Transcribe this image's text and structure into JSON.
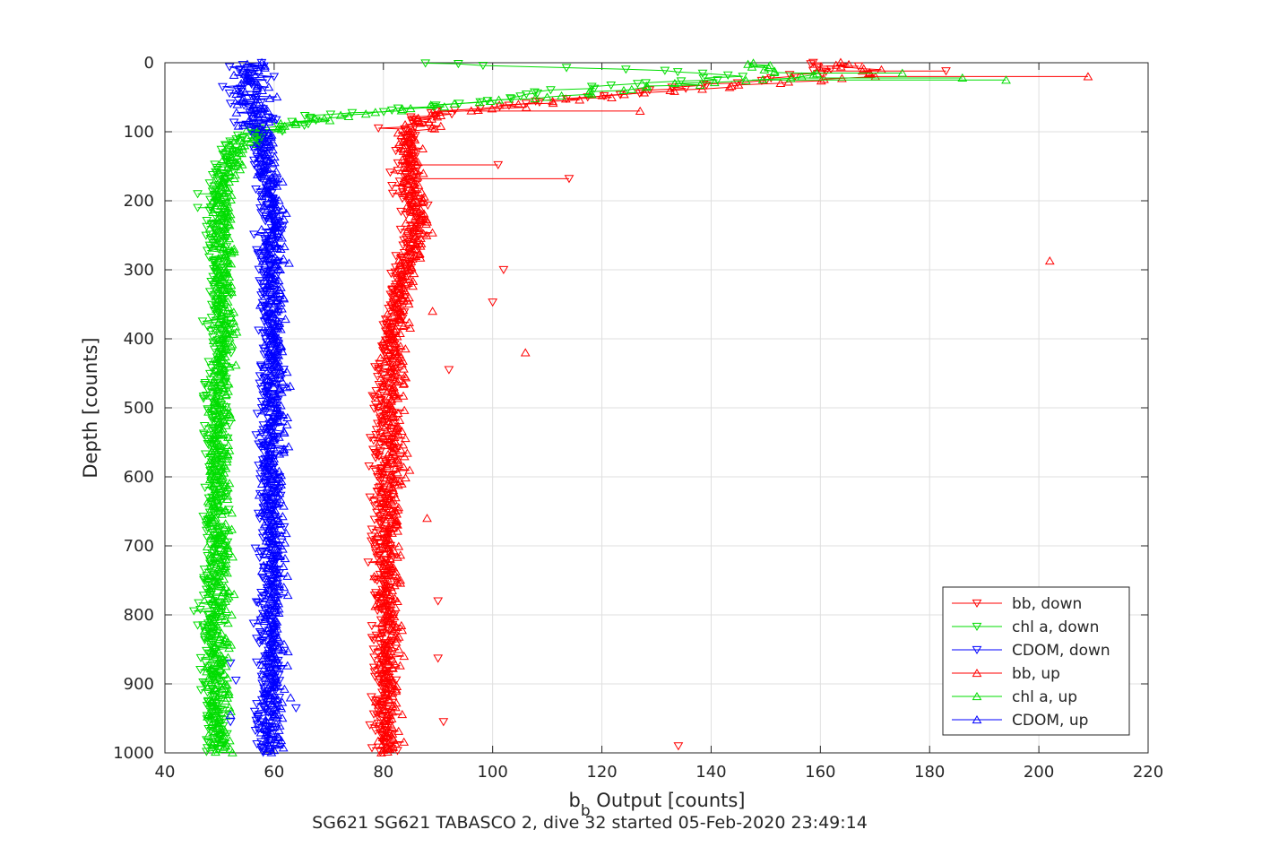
{
  "chart_data": {
    "type": "scatter",
    "xlabel": {
      "main": "b",
      "sub": "b",
      "rest": " Output [counts]"
    },
    "ylabel": "Depth [counts]",
    "caption": "SG621 SG621 TABASCO 2, dive 32 started 05-Feb-2020 23:49:14",
    "xlim": [
      40,
      220
    ],
    "ylim": [
      0,
      1000
    ],
    "y_reversed": true,
    "grid": true,
    "legend_position": "bottom-right",
    "x_ticks": [
      40,
      60,
      80,
      100,
      120,
      140,
      160,
      180,
      200,
      220
    ],
    "y_ticks": [
      0,
      100,
      200,
      300,
      400,
      500,
      600,
      700,
      800,
      900,
      1000
    ],
    "series": [
      {
        "name": "bb, down",
        "color": "#ff0000",
        "marker": "triangle-down",
        "profile": [
          [
            0,
            158
          ],
          [
            10,
            162
          ],
          [
            25,
            150
          ],
          [
            40,
            130
          ],
          [
            50,
            118
          ],
          [
            60,
            104
          ],
          [
            70,
            92
          ],
          [
            80,
            85
          ],
          [
            90,
            84
          ],
          [
            100,
            84
          ],
          [
            150,
            84
          ],
          [
            200,
            85
          ],
          [
            250,
            86
          ],
          [
            300,
            83
          ],
          [
            400,
            81
          ],
          [
            500,
            80
          ],
          [
            600,
            80
          ],
          [
            700,
            80
          ],
          [
            800,
            80
          ],
          [
            900,
            80
          ],
          [
            1000,
            80
          ]
        ],
        "outliers": [
          [
            148,
            101
          ],
          [
            168,
            114
          ],
          [
            300,
            102
          ],
          [
            347,
            100
          ],
          [
            445,
            92
          ],
          [
            863,
            90
          ],
          [
            780,
            90
          ],
          [
            955,
            91
          ],
          [
            990,
            134
          ],
          [
            12,
            183
          ],
          [
            5,
            167
          ]
        ]
      },
      {
        "name": "chl a, down",
        "color": "#00dd00",
        "marker": "triangle-down",
        "profile": [
          [
            0,
            90
          ],
          [
            5,
            100
          ],
          [
            10,
            130
          ],
          [
            20,
            145
          ],
          [
            40,
            110
          ],
          [
            55,
            100
          ],
          [
            65,
            85
          ],
          [
            75,
            70
          ],
          [
            85,
            65
          ],
          [
            95,
            60
          ],
          [
            110,
            53
          ],
          [
            130,
            51
          ],
          [
            160,
            50
          ],
          [
            200,
            49
          ],
          [
            300,
            50
          ],
          [
            400,
            50
          ],
          [
            500,
            49
          ],
          [
            600,
            49
          ],
          [
            700,
            49
          ],
          [
            800,
            48
          ],
          [
            900,
            49
          ],
          [
            1000,
            49
          ]
        ],
        "outliers": [
          [
            210,
            46
          ],
          [
            190,
            46
          ],
          [
            815,
            46
          ],
          [
            985,
            48
          ]
        ]
      },
      {
        "name": "CDOM, down",
        "color": "#0000ff",
        "marker": "triangle-down",
        "profile": [
          [
            0,
            55
          ],
          [
            20,
            55
          ],
          [
            50,
            56
          ],
          [
            80,
            57
          ],
          [
            100,
            57
          ],
          [
            150,
            58
          ],
          [
            200,
            59
          ],
          [
            300,
            59
          ],
          [
            400,
            59
          ],
          [
            500,
            59
          ],
          [
            600,
            59
          ],
          [
            700,
            59
          ],
          [
            800,
            59
          ],
          [
            900,
            59
          ],
          [
            1000,
            58
          ]
        ],
        "outliers": [
          [
            895,
            53
          ],
          [
            870,
            52
          ],
          [
            955,
            52
          ],
          [
            935,
            64
          ]
        ]
      },
      {
        "name": "bb, up",
        "color": "#ff0000",
        "marker": "triangle-up",
        "profile": [
          [
            0,
            160
          ],
          [
            10,
            170
          ],
          [
            20,
            168
          ],
          [
            30,
            150
          ],
          [
            45,
            125
          ],
          [
            60,
            105
          ],
          [
            75,
            90
          ],
          [
            90,
            86
          ],
          [
            100,
            85
          ],
          [
            150,
            85
          ],
          [
            200,
            86
          ],
          [
            250,
            87
          ],
          [
            300,
            84
          ],
          [
            400,
            82
          ],
          [
            500,
            82
          ],
          [
            600,
            82
          ],
          [
            700,
            81
          ],
          [
            800,
            81
          ],
          [
            900,
            81
          ],
          [
            1000,
            81
          ]
        ],
        "outliers": [
          [
            20,
            209
          ],
          [
            70,
            127
          ],
          [
            287,
            202
          ],
          [
            420,
            106
          ],
          [
            360,
            89
          ],
          [
            660,
            88
          ]
        ]
      },
      {
        "name": "chl a, up",
        "color": "#00dd00",
        "marker": "triangle-up",
        "profile": [
          [
            0,
            147
          ],
          [
            10,
            150
          ],
          [
            20,
            160
          ],
          [
            30,
            135
          ],
          [
            45,
            115
          ],
          [
            60,
            95
          ],
          [
            70,
            80
          ],
          [
            85,
            65
          ],
          [
            100,
            58
          ],
          [
            120,
            54
          ],
          [
            150,
            52
          ],
          [
            200,
            51
          ],
          [
            300,
            51
          ],
          [
            400,
            51
          ],
          [
            500,
            50
          ],
          [
            600,
            50
          ],
          [
            700,
            50
          ],
          [
            800,
            50
          ],
          [
            900,
            50
          ],
          [
            1000,
            50
          ]
        ],
        "outliers": [
          [
            25,
            194
          ],
          [
            22,
            186
          ],
          [
            15,
            175
          ]
        ]
      },
      {
        "name": "CDOM, up",
        "color": "#0000ff",
        "marker": "triangle-up",
        "profile": [
          [
            0,
            56
          ],
          [
            30,
            56
          ],
          [
            60,
            57
          ],
          [
            100,
            58
          ],
          [
            150,
            59
          ],
          [
            200,
            60
          ],
          [
            300,
            60
          ],
          [
            400,
            60
          ],
          [
            500,
            60
          ],
          [
            600,
            60
          ],
          [
            700,
            60
          ],
          [
            800,
            60
          ],
          [
            900,
            60
          ],
          [
            1000,
            60
          ]
        ],
        "outliers": [
          [
            920,
            63
          ],
          [
            945,
            52
          ]
        ]
      }
    ]
  }
}
